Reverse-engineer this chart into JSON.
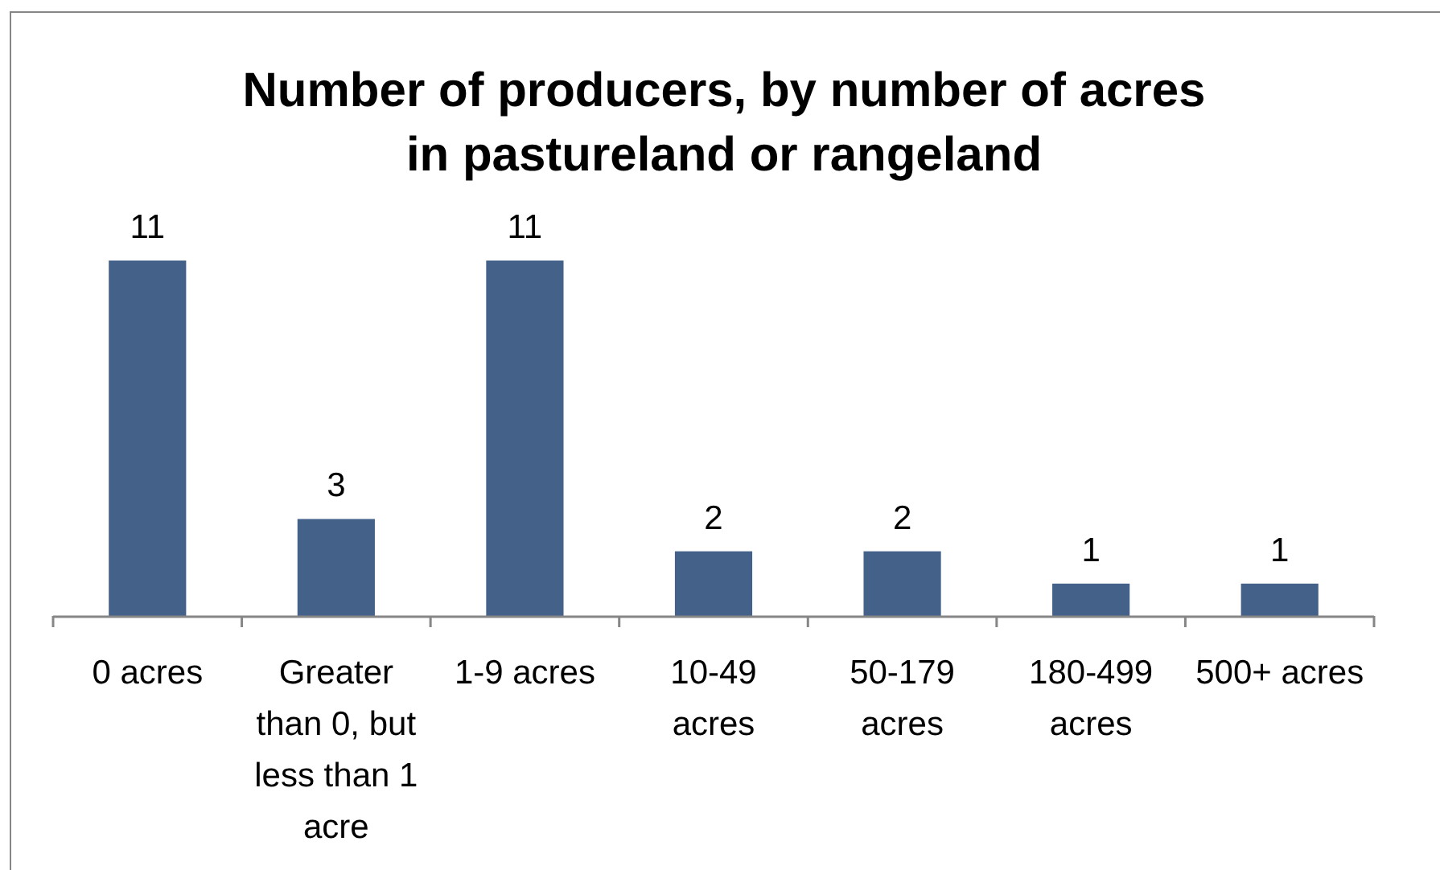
{
  "chart_data": {
    "type": "bar",
    "title": "Number of producers, by number of acres in pastureland or rangeland",
    "categories": [
      "0 acres",
      "Greater than 0, but less than 1 acre",
      "1-9 acres",
      "10-49 acres",
      "50-179 acres",
      "180-499 acres",
      "500+ acres"
    ],
    "values": [
      11,
      3,
      11,
      2,
      2,
      1,
      1
    ],
    "color": "#44618a",
    "data_labels": true
  }
}
